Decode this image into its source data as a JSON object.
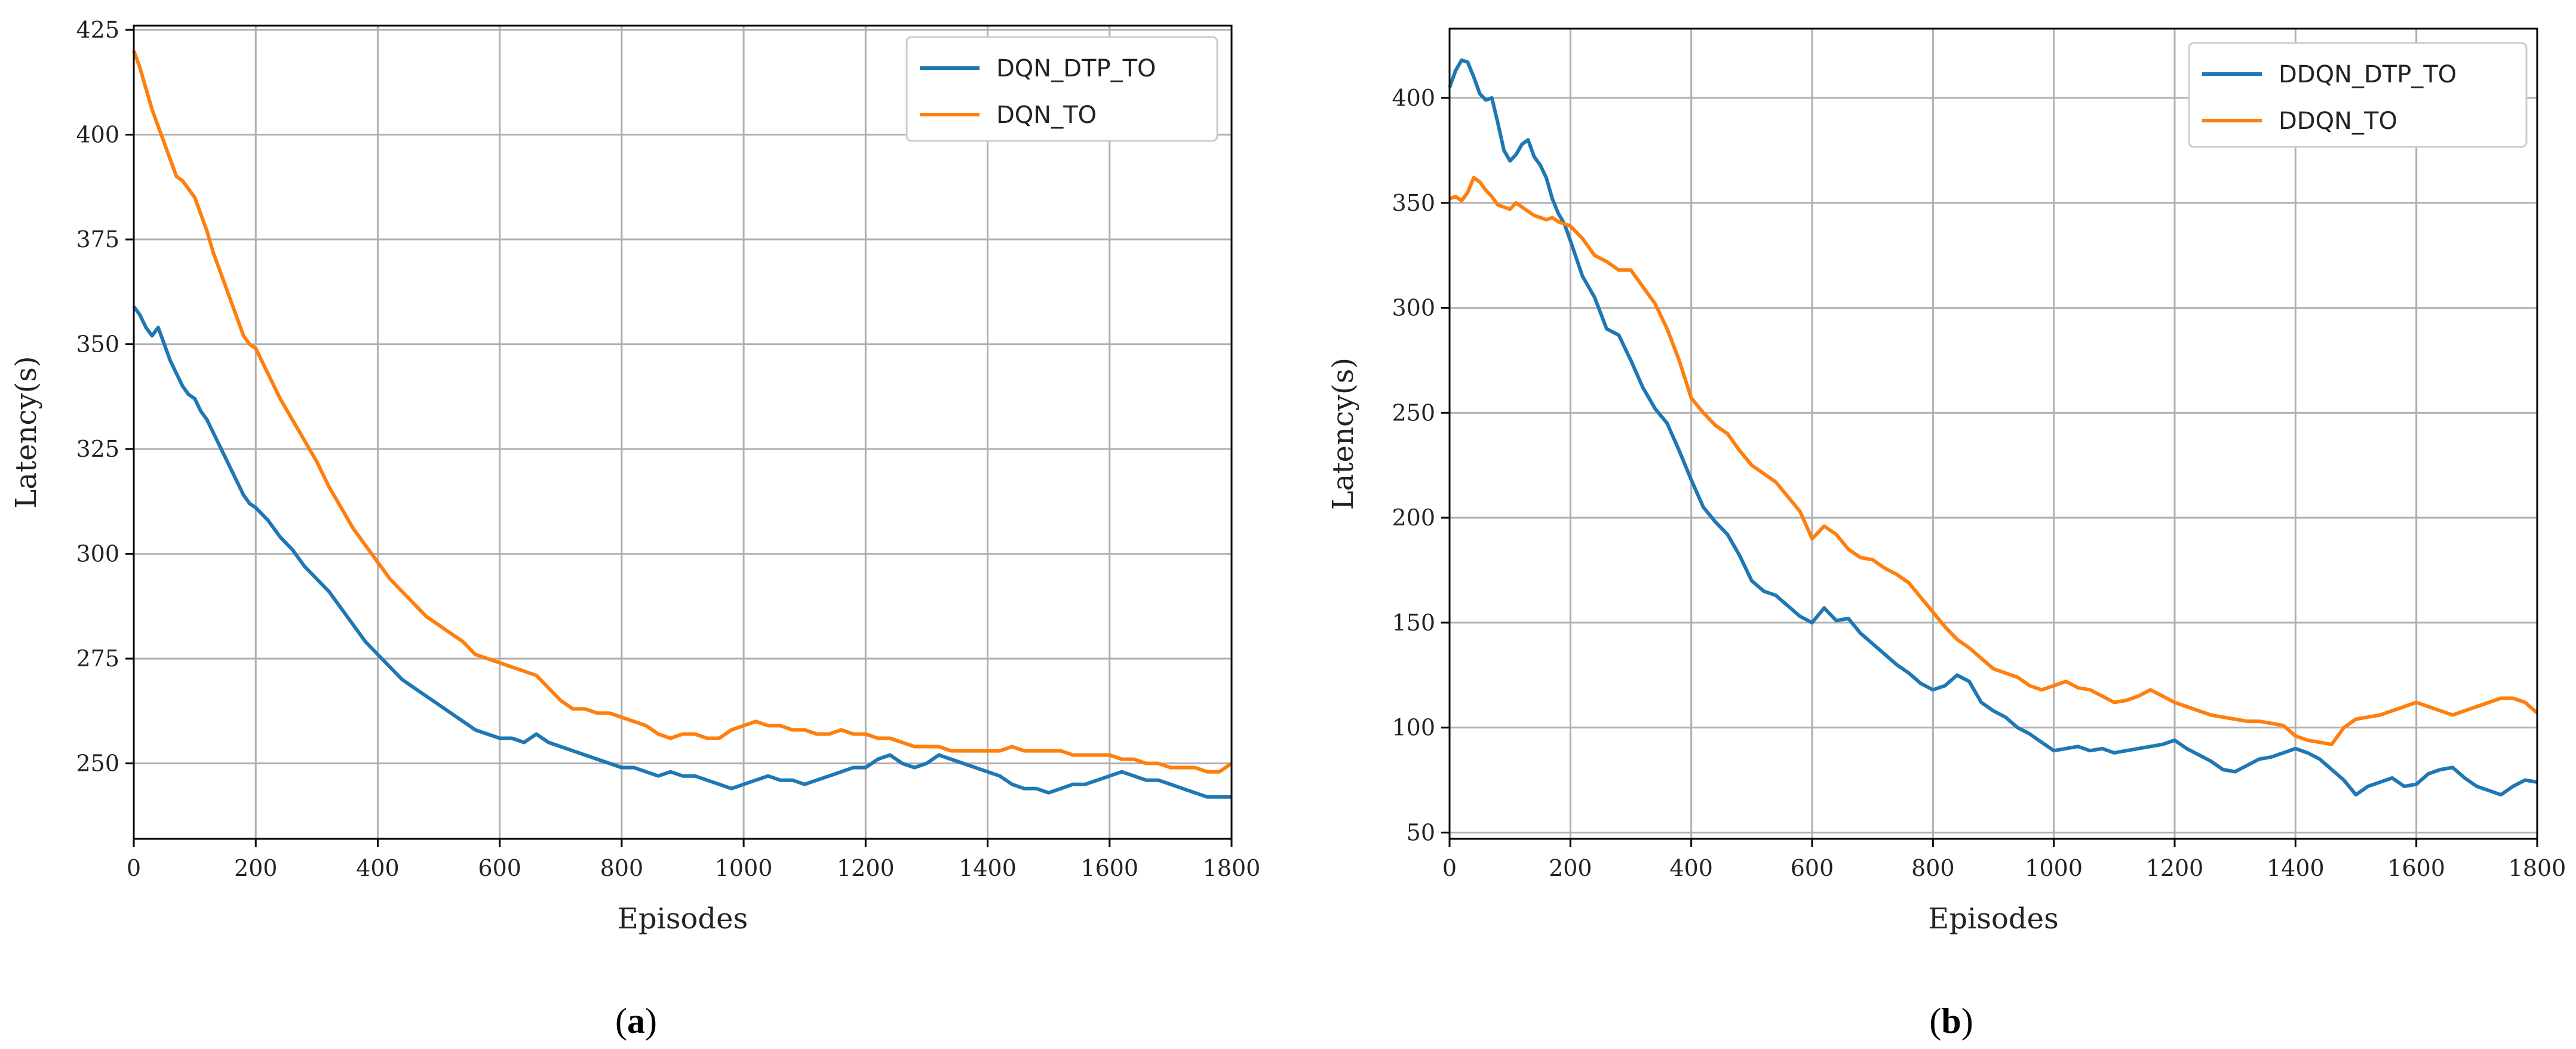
{
  "figure": {
    "caption_a_open": "(",
    "caption_a_letter": "a",
    "caption_a_close": ")",
    "caption_b_open": "(",
    "caption_b_letter": "b",
    "caption_b_close": ")"
  },
  "chart_data": [
    {
      "type": "line",
      "panel": "a",
      "title": "",
      "xlabel": "Episodes",
      "ylabel": "Latency(s)",
      "xlim": [
        0,
        1800
      ],
      "ylim": [
        232,
        426
      ],
      "xticks": [
        0,
        200,
        400,
        600,
        800,
        1000,
        1200,
        1400,
        1600,
        1800
      ],
      "yticks": [
        250,
        275,
        300,
        325,
        350,
        375,
        400,
        425
      ],
      "grid": true,
      "legend_position": "top-right",
      "series": [
        {
          "name": "DQN_DTP_TO",
          "color": "#1f77b4",
          "x": [
            0,
            10,
            20,
            30,
            40,
            50,
            60,
            70,
            80,
            90,
            100,
            110,
            120,
            130,
            140,
            150,
            160,
            170,
            180,
            190,
            200,
            220,
            240,
            260,
            280,
            300,
            320,
            340,
            360,
            380,
            400,
            420,
            440,
            460,
            480,
            500,
            520,
            540,
            560,
            580,
            600,
            620,
            640,
            660,
            680,
            700,
            720,
            740,
            760,
            780,
            800,
            820,
            840,
            860,
            880,
            900,
            920,
            940,
            960,
            980,
            1000,
            1020,
            1040,
            1060,
            1080,
            1100,
            1120,
            1140,
            1160,
            1180,
            1200,
            1220,
            1240,
            1260,
            1280,
            1300,
            1320,
            1340,
            1360,
            1380,
            1400,
            1420,
            1440,
            1460,
            1480,
            1500,
            1520,
            1540,
            1560,
            1580,
            1600,
            1620,
            1640,
            1660,
            1680,
            1700,
            1720,
            1740,
            1760,
            1780,
            1800
          ],
          "values": [
            359,
            357,
            354,
            352,
            354,
            350,
            346,
            343,
            340,
            338,
            337,
            334,
            332,
            329,
            326,
            323,
            320,
            317,
            314,
            312,
            311,
            308,
            304,
            301,
            297,
            294,
            291,
            287,
            283,
            279,
            276,
            273,
            270,
            268,
            266,
            264,
            262,
            260,
            258,
            257,
            256,
            256,
            255,
            257,
            255,
            254,
            253,
            252,
            251,
            250,
            249,
            249,
            248,
            247,
            248,
            247,
            247,
            246,
            245,
            244,
            245,
            246,
            247,
            246,
            246,
            245,
            246,
            247,
            248,
            249,
            249,
            251,
            252,
            250,
            249,
            250,
            252,
            251,
            250,
            249,
            248,
            247,
            245,
            244,
            244,
            243,
            244,
            245,
            245,
            246,
            247,
            248,
            247,
            246,
            246,
            245,
            244,
            243,
            242,
            242,
            242
          ]
        },
        {
          "name": "DQN_TO",
          "color": "#ff7f0e",
          "x": [
            0,
            10,
            20,
            30,
            40,
            50,
            60,
            70,
            80,
            90,
            100,
            110,
            120,
            130,
            140,
            150,
            160,
            170,
            180,
            190,
            200,
            220,
            240,
            260,
            280,
            300,
            320,
            340,
            360,
            380,
            400,
            420,
            440,
            460,
            480,
            500,
            520,
            540,
            560,
            580,
            600,
            620,
            640,
            660,
            680,
            700,
            720,
            740,
            760,
            780,
            800,
            820,
            840,
            860,
            880,
            900,
            920,
            940,
            960,
            980,
            1000,
            1020,
            1040,
            1060,
            1080,
            1100,
            1120,
            1140,
            1160,
            1180,
            1200,
            1220,
            1240,
            1260,
            1280,
            1300,
            1320,
            1340,
            1360,
            1380,
            1400,
            1420,
            1440,
            1460,
            1480,
            1500,
            1520,
            1540,
            1560,
            1580,
            1600,
            1620,
            1640,
            1660,
            1680,
            1700,
            1720,
            1740,
            1760,
            1780,
            1800
          ],
          "values": [
            420,
            416,
            411,
            406,
            402,
            398,
            394,
            390,
            389,
            387,
            385,
            381,
            377,
            372,
            368,
            364,
            360,
            356,
            352,
            350,
            349,
            343,
            337,
            332,
            327,
            322,
            316,
            311,
            306,
            302,
            298,
            294,
            291,
            288,
            285,
            283,
            281,
            279,
            276,
            275,
            274,
            273,
            272,
            271,
            268,
            265,
            263,
            263,
            262,
            262,
            261,
            260,
            259,
            257,
            256,
            257,
            257,
            256,
            256,
            258,
            259,
            260,
            259,
            259,
            258,
            258,
            257,
            257,
            258,
            257,
            257,
            256,
            256,
            255,
            254,
            254,
            254,
            253,
            253,
            253,
            253,
            253,
            254,
            253,
            253,
            253,
            253,
            252,
            252,
            252,
            252,
            251,
            251,
            250,
            250,
            249,
            249,
            249,
            248,
            248,
            250
          ]
        }
      ]
    },
    {
      "type": "line",
      "panel": "b",
      "title": "",
      "xlabel": "Episodes",
      "ylabel": "Latency(s)",
      "xlim": [
        0,
        1800
      ],
      "ylim": [
        47,
        433
      ],
      "xticks": [
        0,
        200,
        400,
        600,
        800,
        1000,
        1200,
        1400,
        1600,
        1800
      ],
      "yticks": [
        50,
        100,
        150,
        200,
        250,
        300,
        350,
        400
      ],
      "grid": true,
      "legend_position": "top-right",
      "series": [
        {
          "name": "DDQN_DTP_TO",
          "color": "#1f77b4",
          "x": [
            0,
            10,
            20,
            30,
            40,
            50,
            60,
            70,
            80,
            90,
            100,
            110,
            120,
            130,
            140,
            150,
            160,
            170,
            180,
            190,
            200,
            220,
            240,
            260,
            280,
            300,
            320,
            340,
            360,
            380,
            400,
            420,
            440,
            460,
            480,
            500,
            520,
            540,
            560,
            580,
            600,
            620,
            640,
            660,
            680,
            700,
            720,
            740,
            760,
            780,
            800,
            820,
            840,
            860,
            880,
            900,
            920,
            940,
            960,
            980,
            1000,
            1020,
            1040,
            1060,
            1080,
            1100,
            1120,
            1140,
            1160,
            1180,
            1200,
            1220,
            1240,
            1260,
            1280,
            1300,
            1320,
            1340,
            1360,
            1380,
            1400,
            1420,
            1440,
            1460,
            1480,
            1500,
            1520,
            1540,
            1560,
            1580,
            1600,
            1620,
            1640,
            1660,
            1680,
            1700,
            1720,
            1740,
            1760,
            1780,
            1800
          ],
          "values": [
            405,
            413,
            418,
            417,
            410,
            402,
            399,
            400,
            388,
            375,
            370,
            373,
            378,
            380,
            372,
            368,
            362,
            352,
            345,
            340,
            332,
            315,
            305,
            290,
            287,
            275,
            262,
            252,
            245,
            232,
            218,
            205,
            198,
            192,
            182,
            170,
            165,
            163,
            158,
            153,
            150,
            157,
            151,
            152,
            145,
            140,
            135,
            130,
            126,
            121,
            118,
            120,
            125,
            122,
            112,
            108,
            105,
            100,
            97,
            93,
            89,
            90,
            91,
            89,
            90,
            88,
            89,
            90,
            91,
            92,
            94,
            90,
            87,
            84,
            80,
            79,
            82,
            85,
            86,
            88,
            90,
            88,
            85,
            80,
            75,
            68,
            72,
            74,
            76,
            72,
            73,
            78,
            80,
            81,
            76,
            72,
            70,
            68,
            72,
            75,
            74
          ]
        },
        {
          "name": "DDQN_TO",
          "color": "#ff7f0e",
          "x": [
            0,
            10,
            20,
            30,
            40,
            50,
            60,
            70,
            80,
            90,
            100,
            110,
            120,
            130,
            140,
            150,
            160,
            170,
            180,
            190,
            200,
            220,
            240,
            260,
            280,
            300,
            320,
            340,
            360,
            380,
            400,
            420,
            440,
            460,
            480,
            500,
            520,
            540,
            560,
            580,
            600,
            620,
            640,
            660,
            680,
            700,
            720,
            740,
            760,
            780,
            800,
            820,
            840,
            860,
            880,
            900,
            920,
            940,
            960,
            980,
            1000,
            1020,
            1040,
            1060,
            1080,
            1100,
            1120,
            1140,
            1160,
            1180,
            1200,
            1220,
            1240,
            1260,
            1280,
            1300,
            1320,
            1340,
            1360,
            1380,
            1400,
            1420,
            1440,
            1460,
            1480,
            1500,
            1520,
            1540,
            1560,
            1580,
            1600,
            1620,
            1640,
            1660,
            1680,
            1700,
            1720,
            1740,
            1760,
            1780,
            1800
          ],
          "values": [
            352,
            353,
            351,
            355,
            362,
            360,
            356,
            353,
            349,
            348,
            347,
            350,
            348,
            346,
            344,
            343,
            342,
            343,
            341,
            340,
            339,
            333,
            325,
            322,
            318,
            318,
            310,
            302,
            290,
            275,
            257,
            250,
            244,
            240,
            232,
            225,
            221,
            217,
            210,
            203,
            190,
            196,
            192,
            185,
            181,
            180,
            176,
            173,
            169,
            162,
            155,
            148,
            142,
            138,
            133,
            128,
            126,
            124,
            120,
            118,
            120,
            122,
            119,
            118,
            115,
            112,
            113,
            115,
            118,
            115,
            112,
            110,
            108,
            106,
            105,
            104,
            103,
            103,
            102,
            101,
            96,
            94,
            93,
            92,
            100,
            104,
            105,
            106,
            108,
            110,
            112,
            110,
            108,
            106,
            108,
            110,
            112,
            114,
            114,
            112,
            107
          ]
        }
      ]
    }
  ]
}
